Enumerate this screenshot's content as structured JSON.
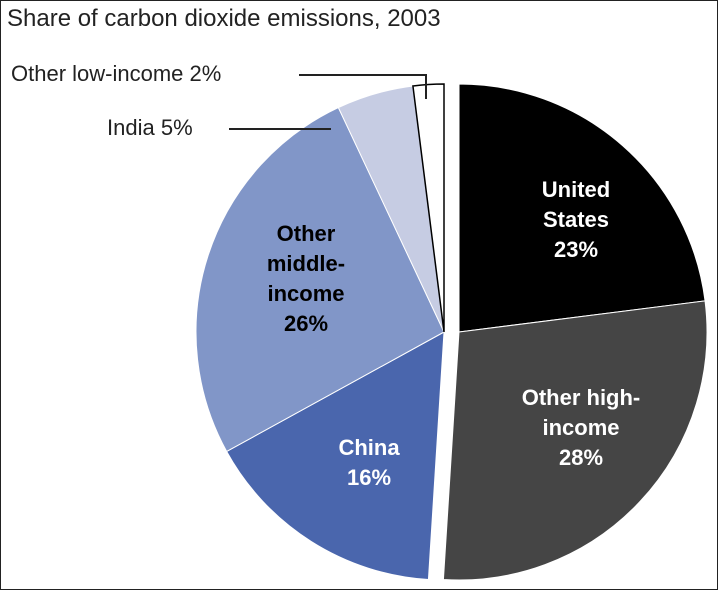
{
  "chart_data": {
    "type": "pie",
    "title": "Share of carbon dioxide emissions, 2003",
    "categories": [
      "United States",
      "Other high-income",
      "China",
      "Other middle-income",
      "India",
      "Other low-income"
    ],
    "values": [
      23,
      28,
      16,
      26,
      5,
      2
    ],
    "value_labels": [
      "23%",
      "28%",
      "16%",
      "26%",
      "5%",
      "2%"
    ],
    "colors": [
      "#000000",
      "#454545",
      "#4a66ad",
      "#8196c8",
      "#c6cce3",
      "#ffffff"
    ]
  }
}
